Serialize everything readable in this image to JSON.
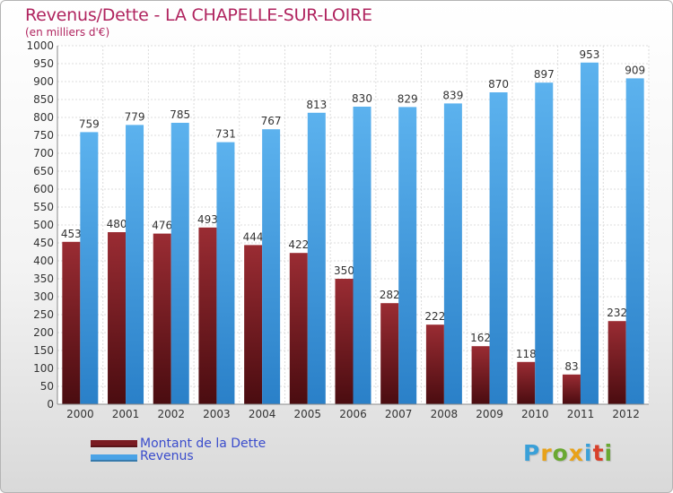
{
  "chart_data": {
    "type": "bar",
    "title": "Revenus/Dette - LA CHAPELLE-SUR-LOIRE",
    "subtitle": "(en milliers d'€)",
    "categories": [
      "2000",
      "2001",
      "2002",
      "2003",
      "2004",
      "2005",
      "2006",
      "2007",
      "2008",
      "2009",
      "2010",
      "2011",
      "2012"
    ],
    "series": [
      {
        "name": "Montant de la Dette",
        "values": [
          453,
          480,
          476,
          493,
          444,
          422,
          350,
          282,
          222,
          162,
          118,
          83,
          232
        ],
        "color": "#7a1c22"
      },
      {
        "name": "Revenus",
        "values": [
          759,
          779,
          785,
          731,
          767,
          813,
          830,
          829,
          839,
          870,
          897,
          953,
          909
        ],
        "color": "#4aa3e6"
      }
    ],
    "ylim": [
      0,
      1000
    ],
    "ytick_step": 50,
    "grid": true,
    "legend_position": "bottom-left"
  },
  "legend": {
    "items": [
      {
        "label": "Montant de la Dette",
        "color": "#7a1c22"
      },
      {
        "label": "Revenus",
        "color": "#4aa3e6"
      }
    ]
  },
  "brand": {
    "letters": [
      "P",
      "r",
      "o",
      "x",
      "i",
      "t",
      "i"
    ],
    "colors": [
      "#3aa0d8",
      "#e8a21a",
      "#6aa832",
      "#e8a21a",
      "#3aa0d8",
      "#d8402a",
      "#6aa832"
    ]
  }
}
